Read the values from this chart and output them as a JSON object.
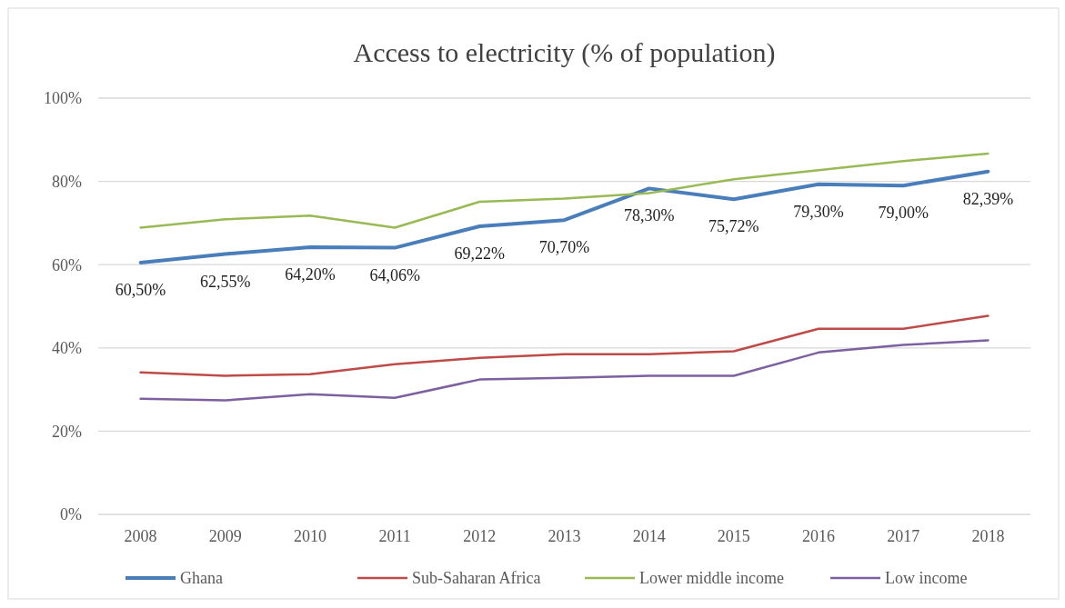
{
  "chart_data": {
    "type": "line",
    "title": "Access to electricity (% of population)",
    "categories": [
      "2008",
      "2009",
      "2010",
      "2011",
      "2012",
      "2013",
      "2014",
      "2015",
      "2016",
      "2017",
      "2018"
    ],
    "series": [
      {
        "name": "Ghana",
        "color": "#4a7ebb",
        "values": [
          60.5,
          62.55,
          64.2,
          64.06,
          69.22,
          70.7,
          78.3,
          75.72,
          79.3,
          79.0,
          82.39
        ],
        "value_labels": [
          "60,50%",
          "62,55%",
          "64,20%",
          "64,06%",
          "69,22%",
          "70,70%",
          "78,30%",
          "75,72%",
          "79,30%",
          "79,00%",
          "82,39%"
        ]
      },
      {
        "name": "Sub-Saharan Africa",
        "color": "#be4b48",
        "values": [
          34.1,
          33.3,
          33.7,
          36.1,
          37.6,
          38.5,
          38.5,
          39.2,
          44.6,
          44.6,
          47.7
        ]
      },
      {
        "name": "Lower middle income",
        "color": "#98b954",
        "values": [
          68.9,
          70.9,
          71.8,
          68.9,
          75.1,
          75.9,
          77.2,
          80.5,
          82.7,
          84.9,
          86.7
        ]
      },
      {
        "name": "Low income",
        "color": "#7d60a0",
        "values": [
          27.8,
          27.4,
          28.9,
          28.0,
          32.4,
          32.8,
          33.3,
          33.3,
          38.9,
          40.7,
          41.8
        ]
      }
    ],
    "ylim": [
      0,
      100
    ],
    "yticks": [
      {
        "value": 0,
        "label": "0%"
      },
      {
        "value": 20,
        "label": "20%"
      },
      {
        "value": 40,
        "label": "40%"
      },
      {
        "value": 60,
        "label": "60%"
      },
      {
        "value": 80,
        "label": "80%"
      },
      {
        "value": 100,
        "label": "100%"
      }
    ],
    "grid": "y",
    "legend": "bottom",
    "marker": "none",
    "line_style": "solid"
  }
}
